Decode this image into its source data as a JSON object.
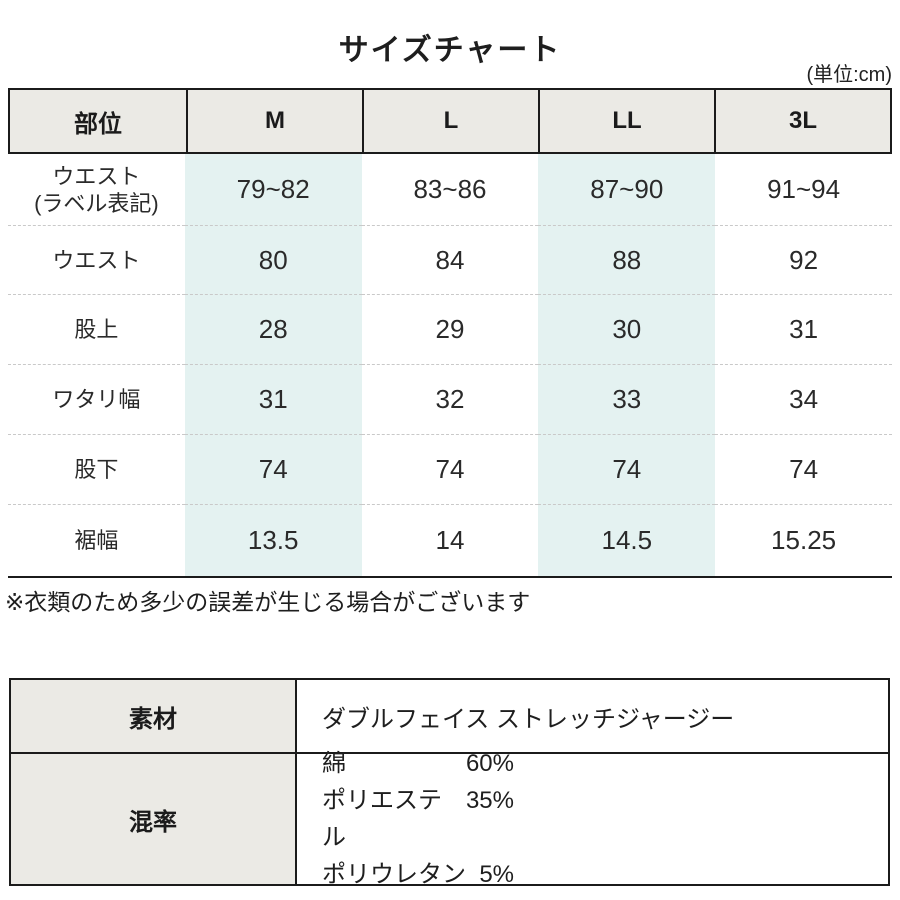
{
  "title": "サイズチャート",
  "unit_label": "(単位:cm)",
  "colors": {
    "header_bg": "#ebeae5",
    "highlight_bg": "#e4f2f1",
    "border": "#1b1b1b",
    "dotted_divider": "#c9c9c9"
  },
  "size_table": {
    "columns": [
      "部位",
      "M",
      "L",
      "LL",
      "3L"
    ],
    "highlighted_columns": [
      "M",
      "LL"
    ],
    "rows": [
      {
        "label": "ウエスト",
        "label2": "(ラベル表記)",
        "values": [
          "79~82",
          "83~86",
          "87~90",
          "91~94"
        ]
      },
      {
        "label": "ウエスト",
        "values": [
          "80",
          "84",
          "88",
          "92"
        ]
      },
      {
        "label": "股上",
        "values": [
          "28",
          "29",
          "30",
          "31"
        ]
      },
      {
        "label": "ワタリ幅",
        "values": [
          "31",
          "32",
          "33",
          "34"
        ]
      },
      {
        "label": "股下",
        "values": [
          "74",
          "74",
          "74",
          "74"
        ]
      },
      {
        "label": "裾幅",
        "values": [
          "13.5",
          "14",
          "14.5",
          "15.25"
        ]
      }
    ]
  },
  "note": "※衣類のため多少の誤差が生じる場合がございます",
  "spec_table": {
    "rows": [
      {
        "label": "素材",
        "value": "ダブルフェイス ストレッチジャージー"
      },
      {
        "label": "混率",
        "items": [
          {
            "name": "綿",
            "pct": "60%"
          },
          {
            "name": "ポリエステル",
            "pct": "35%"
          },
          {
            "name": "ポリウレタン",
            "pct": "5%"
          }
        ]
      }
    ]
  }
}
